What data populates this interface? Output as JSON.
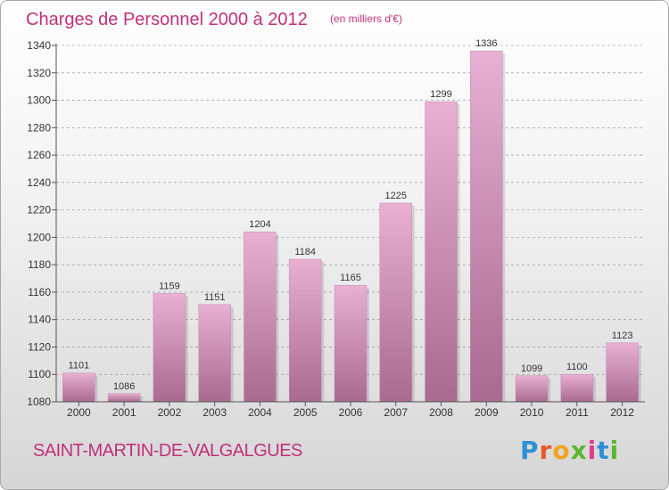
{
  "title": "Charges de Personnel 2000 à 2012",
  "subtitle": "(en milliers d'€)",
  "place": "SAINT-MARTIN-DE-VALGALGUES",
  "brand": {
    "letters": [
      "P",
      "r",
      "o",
      "x",
      "i",
      "t",
      "i"
    ],
    "colors": [
      "#2f8fd6",
      "#e8562a",
      "#f2a21c",
      "#5cb531",
      "#e03a8a",
      "#2f8fd6",
      "#5cb531"
    ]
  },
  "colors": {
    "title": "#c0307a",
    "bar_light": "#e8b0d2",
    "bar_dark": "#a86a8e",
    "grid": "#888888"
  },
  "chart_data": {
    "type": "bar",
    "categories": [
      "2000",
      "2001",
      "2002",
      "2003",
      "2004",
      "2005",
      "2006",
      "2007",
      "2008",
      "2009",
      "2010",
      "2011",
      "2012"
    ],
    "values": [
      1101,
      1086,
      1159,
      1151,
      1204,
      1184,
      1165,
      1225,
      1299,
      1336,
      1099,
      1100,
      1123
    ],
    "ylim": [
      1080,
      1340
    ],
    "yticks": [
      1080,
      1100,
      1120,
      1140,
      1160,
      1180,
      1200,
      1220,
      1240,
      1260,
      1280,
      1300,
      1320,
      1340
    ],
    "xlabel": "",
    "ylabel": "",
    "grid": true
  }
}
